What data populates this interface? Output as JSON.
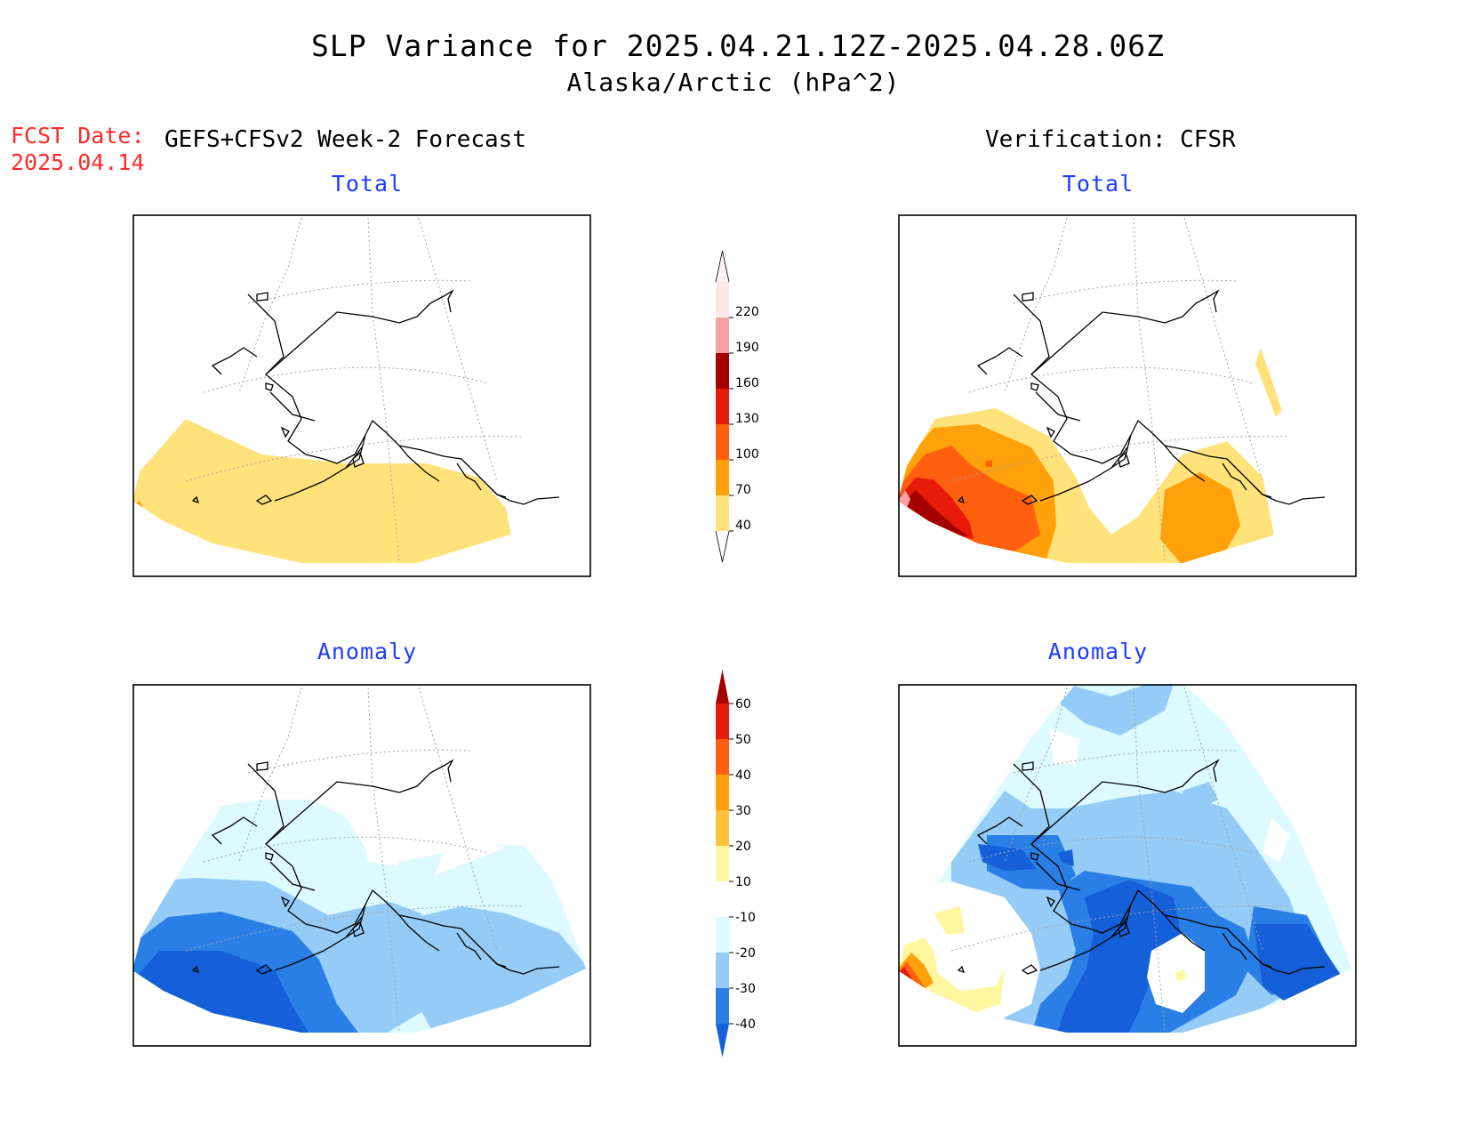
{
  "title": "SLP Variance for 2025.04.21.12Z-2025.04.28.06Z",
  "subtitle": "Alaska/Arctic (hPa^2)",
  "fcst": {
    "label": "FCST Date:",
    "date": "2025.04.14"
  },
  "forecast_header": "GEFS+CFSv2 Week-2 Forecast",
  "verification_header": "Verification: CFSR",
  "panels": {
    "forecast_total": {
      "title": "Total"
    },
    "verification_total": {
      "title": "Total"
    },
    "forecast_anomaly": {
      "title": "Anomaly"
    },
    "verification_anomaly": {
      "title": "Anomaly"
    }
  },
  "colorbars": {
    "total": {
      "labels": [
        "40",
        "70",
        "100",
        "130",
        "160",
        "190",
        "220"
      ],
      "colors": [
        "#ffe27a",
        "#ffa10a",
        "#ff6010",
        "#e81a0a",
        "#a50000",
        "#f5a3a3",
        "#fde8e8"
      ]
    },
    "anomaly": {
      "labels": [
        "-40",
        "-30",
        "-20",
        "-10",
        "10",
        "20",
        "30",
        "40",
        "50",
        "60"
      ],
      "colors": [
        "#1560d8",
        "#2a7fe6",
        "#94ccf7",
        "#dcfaff",
        "#ffffff",
        "#fff7a0",
        "#ffc23c",
        "#ffa10a",
        "#ff6010",
        "#e81a0a",
        "#a50000"
      ]
    }
  },
  "map_colors": {
    "light_yellow": "#ffe27a",
    "orange": "#ffa10a",
    "dark_orange": "#ff6010",
    "red": "#e81a0a",
    "dark_red": "#a50000",
    "pink": "#f5a3a3",
    "pale_yellow": "#fff7a0",
    "very_light_blue": "#dcfaff",
    "light_blue": "#94ccf7",
    "blue": "#2a7fe6",
    "dark_blue": "#1560d8"
  }
}
